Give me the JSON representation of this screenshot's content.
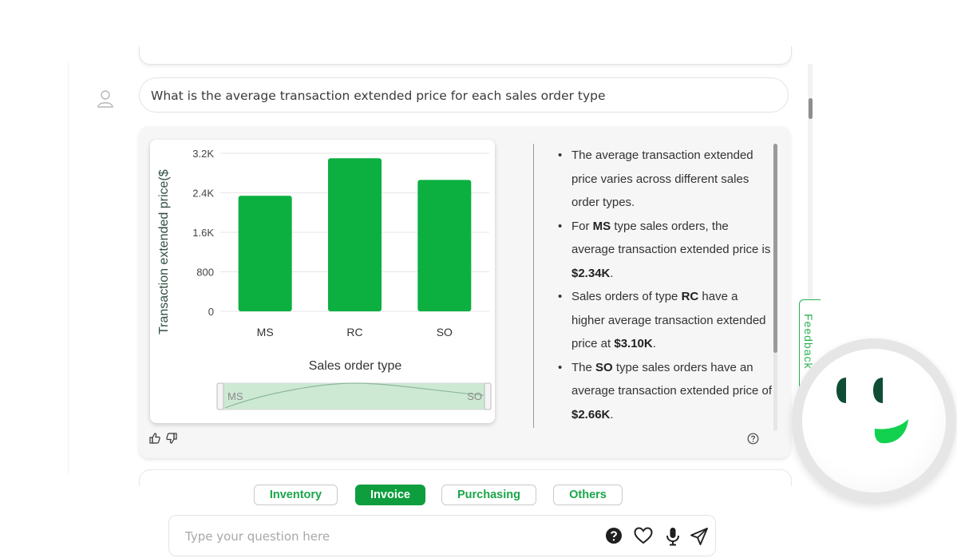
{
  "conversation": {
    "question": "What is the average transaction extended price for each sales order type"
  },
  "chart_data": {
    "type": "bar",
    "categories": [
      "MS",
      "RC",
      "SO"
    ],
    "values": [
      2340,
      3100,
      2660
    ],
    "ylabel": "Transaction extended price($",
    "xlabel": "Sales order type",
    "ylim": [
      0,
      3200
    ],
    "yticks": [
      0,
      800,
      1600,
      2400,
      3200
    ],
    "ytick_labels": [
      "0",
      "800",
      "1.6K",
      "2.4K",
      "3.2K"
    ],
    "grid": true,
    "bar_color": "#0bb040",
    "slider": {
      "start_label": "MS",
      "end_label": "SO"
    }
  },
  "insights": [
    {
      "before": "The average transaction extended price varies across different sales order types.",
      "bold": "",
      "after": ""
    },
    {
      "before": "For ",
      "bold": "MS",
      "after": " type sales orders, the average transaction extended price is ",
      "bold2": "$2.34K",
      "after2": "."
    },
    {
      "before": "Sales orders of type ",
      "bold": "RC",
      "after": " have a higher average transaction extended price at ",
      "bold2": "$3.10K",
      "after2": "."
    },
    {
      "before": "The ",
      "bold": "SO",
      "after": " type sales orders have an average transaction extended price of ",
      "bold2": "$2.66K",
      "after2": "."
    }
  ],
  "tabs": [
    {
      "label": "Inventory",
      "active": false
    },
    {
      "label": "Invoice",
      "active": true
    },
    {
      "label": "Purchasing",
      "active": false
    },
    {
      "label": "Others",
      "active": false
    }
  ],
  "input": {
    "placeholder": "Type your question here",
    "value": ""
  },
  "feedback": {
    "label": "Feedback"
  },
  "colors": {
    "accent": "#0e9e3e",
    "bar": "#0bb040",
    "bot_dark": "#0f4d34",
    "bot_green": "#12d14e"
  },
  "icons": [
    "user-icon",
    "thumbs-up-icon",
    "thumbs-down-icon",
    "help-icon",
    "heart-icon",
    "microphone-icon",
    "send-icon"
  ]
}
